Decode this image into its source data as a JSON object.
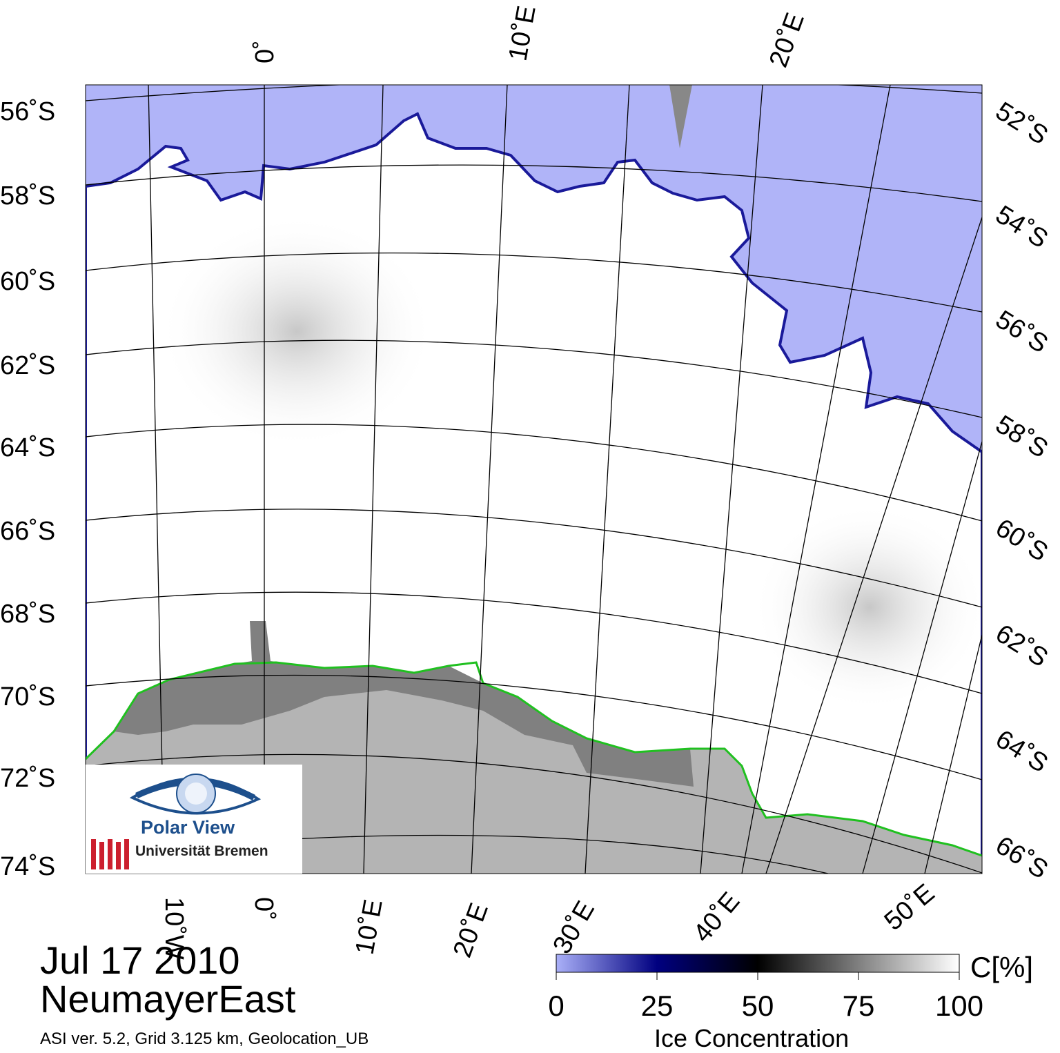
{
  "date": "Jul 17 2010",
  "region": "NeumayerEast",
  "meta": "ASI ver. 5.2,  Grid 3.125 km, Geolocation_UB",
  "logo": {
    "name": "Polar View",
    "org": "Universität Bremen"
  },
  "colorbar": {
    "unit": "C[%]",
    "label": "Ice Concentration",
    "ticks": [
      "0",
      "25",
      "50",
      "75",
      "100"
    ],
    "stops": [
      "#aab0f8",
      "#000080",
      "#000000",
      "#ffffff"
    ]
  },
  "colors": {
    "open_water": "#b0b4f8",
    "sea_ice": "#ffffff",
    "land": "#b4b4b4",
    "ice_shelf": "#808080",
    "coastline": "#20c020",
    "ice_edge": "#1a1a9a"
  },
  "graticule": {
    "lat_left": [
      "56˚S",
      "58˚S",
      "60˚S",
      "62˚S",
      "64˚S",
      "66˚S",
      "68˚S",
      "70˚S",
      "72˚S",
      "74˚S"
    ],
    "lat_right": [
      "52˚S",
      "54˚S",
      "56˚S",
      "58˚S",
      "60˚S",
      "62˚S",
      "64˚S",
      "66˚S"
    ],
    "lon_top": [
      "0˚",
      "10˚E",
      "20˚E"
    ],
    "lon_bottom": [
      "10˚W",
      "0˚",
      "10˚E",
      "20˚E",
      "30˚E",
      "40˚E",
      "50˚E"
    ]
  }
}
